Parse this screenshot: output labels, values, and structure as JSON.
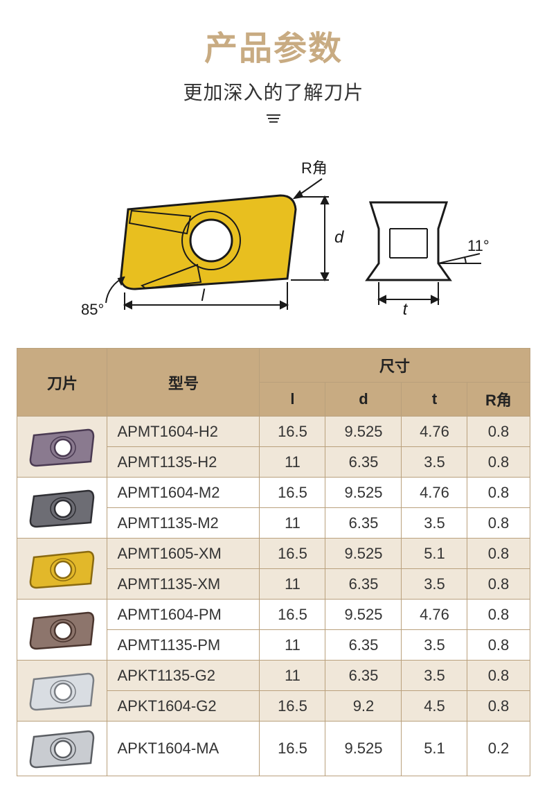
{
  "header": {
    "title": "产品参数",
    "title_color": "#c8ab82",
    "subtitle": "更加深入的了解刀片"
  },
  "diagram": {
    "labels": {
      "r_corner": "R角",
      "d": "d",
      "t": "t",
      "l": "l",
      "angle_left": "85°",
      "angle_right": "11°"
    },
    "insert_fill": "#e8bf1f",
    "insert_stroke": "#1a1a1a",
    "dim_color": "#1a1a1a"
  },
  "table": {
    "header_bg": "#c8ab82",
    "border_color": "#b9a07c",
    "row_alt_bg": "#f0e7d9",
    "columns": {
      "blade": "刀片",
      "model": "型号",
      "dims_group": "尺寸",
      "l": "l",
      "d": "d",
      "t": "t",
      "r": "R角"
    },
    "groups": [
      {
        "insert_style": "purple",
        "rows": [
          {
            "model": "APMT1604-H2",
            "l": "16.5",
            "d": "9.525",
            "t": "4.76",
            "r": "0.8"
          },
          {
            "model": "APMT1135-H2",
            "l": "11",
            "d": "6.35",
            "t": "3.5",
            "r": "0.8"
          }
        ]
      },
      {
        "insert_style": "grey",
        "rows": [
          {
            "model": "APMT1604-M2",
            "l": "16.5",
            "d": "9.525",
            "t": "4.76",
            "r": "0.8"
          },
          {
            "model": "APMT1135-M2",
            "l": "11",
            "d": "6.35",
            "t": "3.5",
            "r": "0.8"
          }
        ]
      },
      {
        "insert_style": "gold",
        "rows": [
          {
            "model": "APMT1605-XM",
            "l": "16.5",
            "d": "9.525",
            "t": "5.1",
            "r": "0.8"
          },
          {
            "model": "APMT1135-XM",
            "l": "11",
            "d": "6.35",
            "t": "3.5",
            "r": "0.8"
          }
        ]
      },
      {
        "insert_style": "bronze",
        "rows": [
          {
            "model": "APMT1604-PM",
            "l": "16.5",
            "d": "9.525",
            "t": "4.76",
            "r": "0.8"
          },
          {
            "model": "APMT1135-PM",
            "l": "11",
            "d": "6.35",
            "t": "3.5",
            "r": "0.8"
          }
        ]
      },
      {
        "insert_style": "silver",
        "rows": [
          {
            "model": "APKT1135-G2",
            "l": "11",
            "d": "6.35",
            "t": "3.5",
            "r": "0.8"
          },
          {
            "model": "APKT1604-G2",
            "l": "16.5",
            "d": "9.2",
            "t": "4.5",
            "r": "0.8"
          }
        ]
      },
      {
        "insert_style": "steel",
        "rows": [
          {
            "model": "APKT1604-MA",
            "l": "16.5",
            "d": "9.525",
            "t": "5.1",
            "r": "0.2"
          }
        ]
      }
    ],
    "insert_palette": {
      "purple": {
        "fill": "#8a7a8f",
        "stroke": "#4a3a52"
      },
      "grey": {
        "fill": "#6d6d74",
        "stroke": "#2f2f34"
      },
      "gold": {
        "fill": "#e2b82a",
        "stroke": "#8a6a10"
      },
      "bronze": {
        "fill": "#8d756c",
        "stroke": "#4a352e"
      },
      "silver": {
        "fill": "#d9dde2",
        "stroke": "#7a7e84"
      },
      "steel": {
        "fill": "#c9ccd1",
        "stroke": "#5a5d62"
      }
    }
  }
}
